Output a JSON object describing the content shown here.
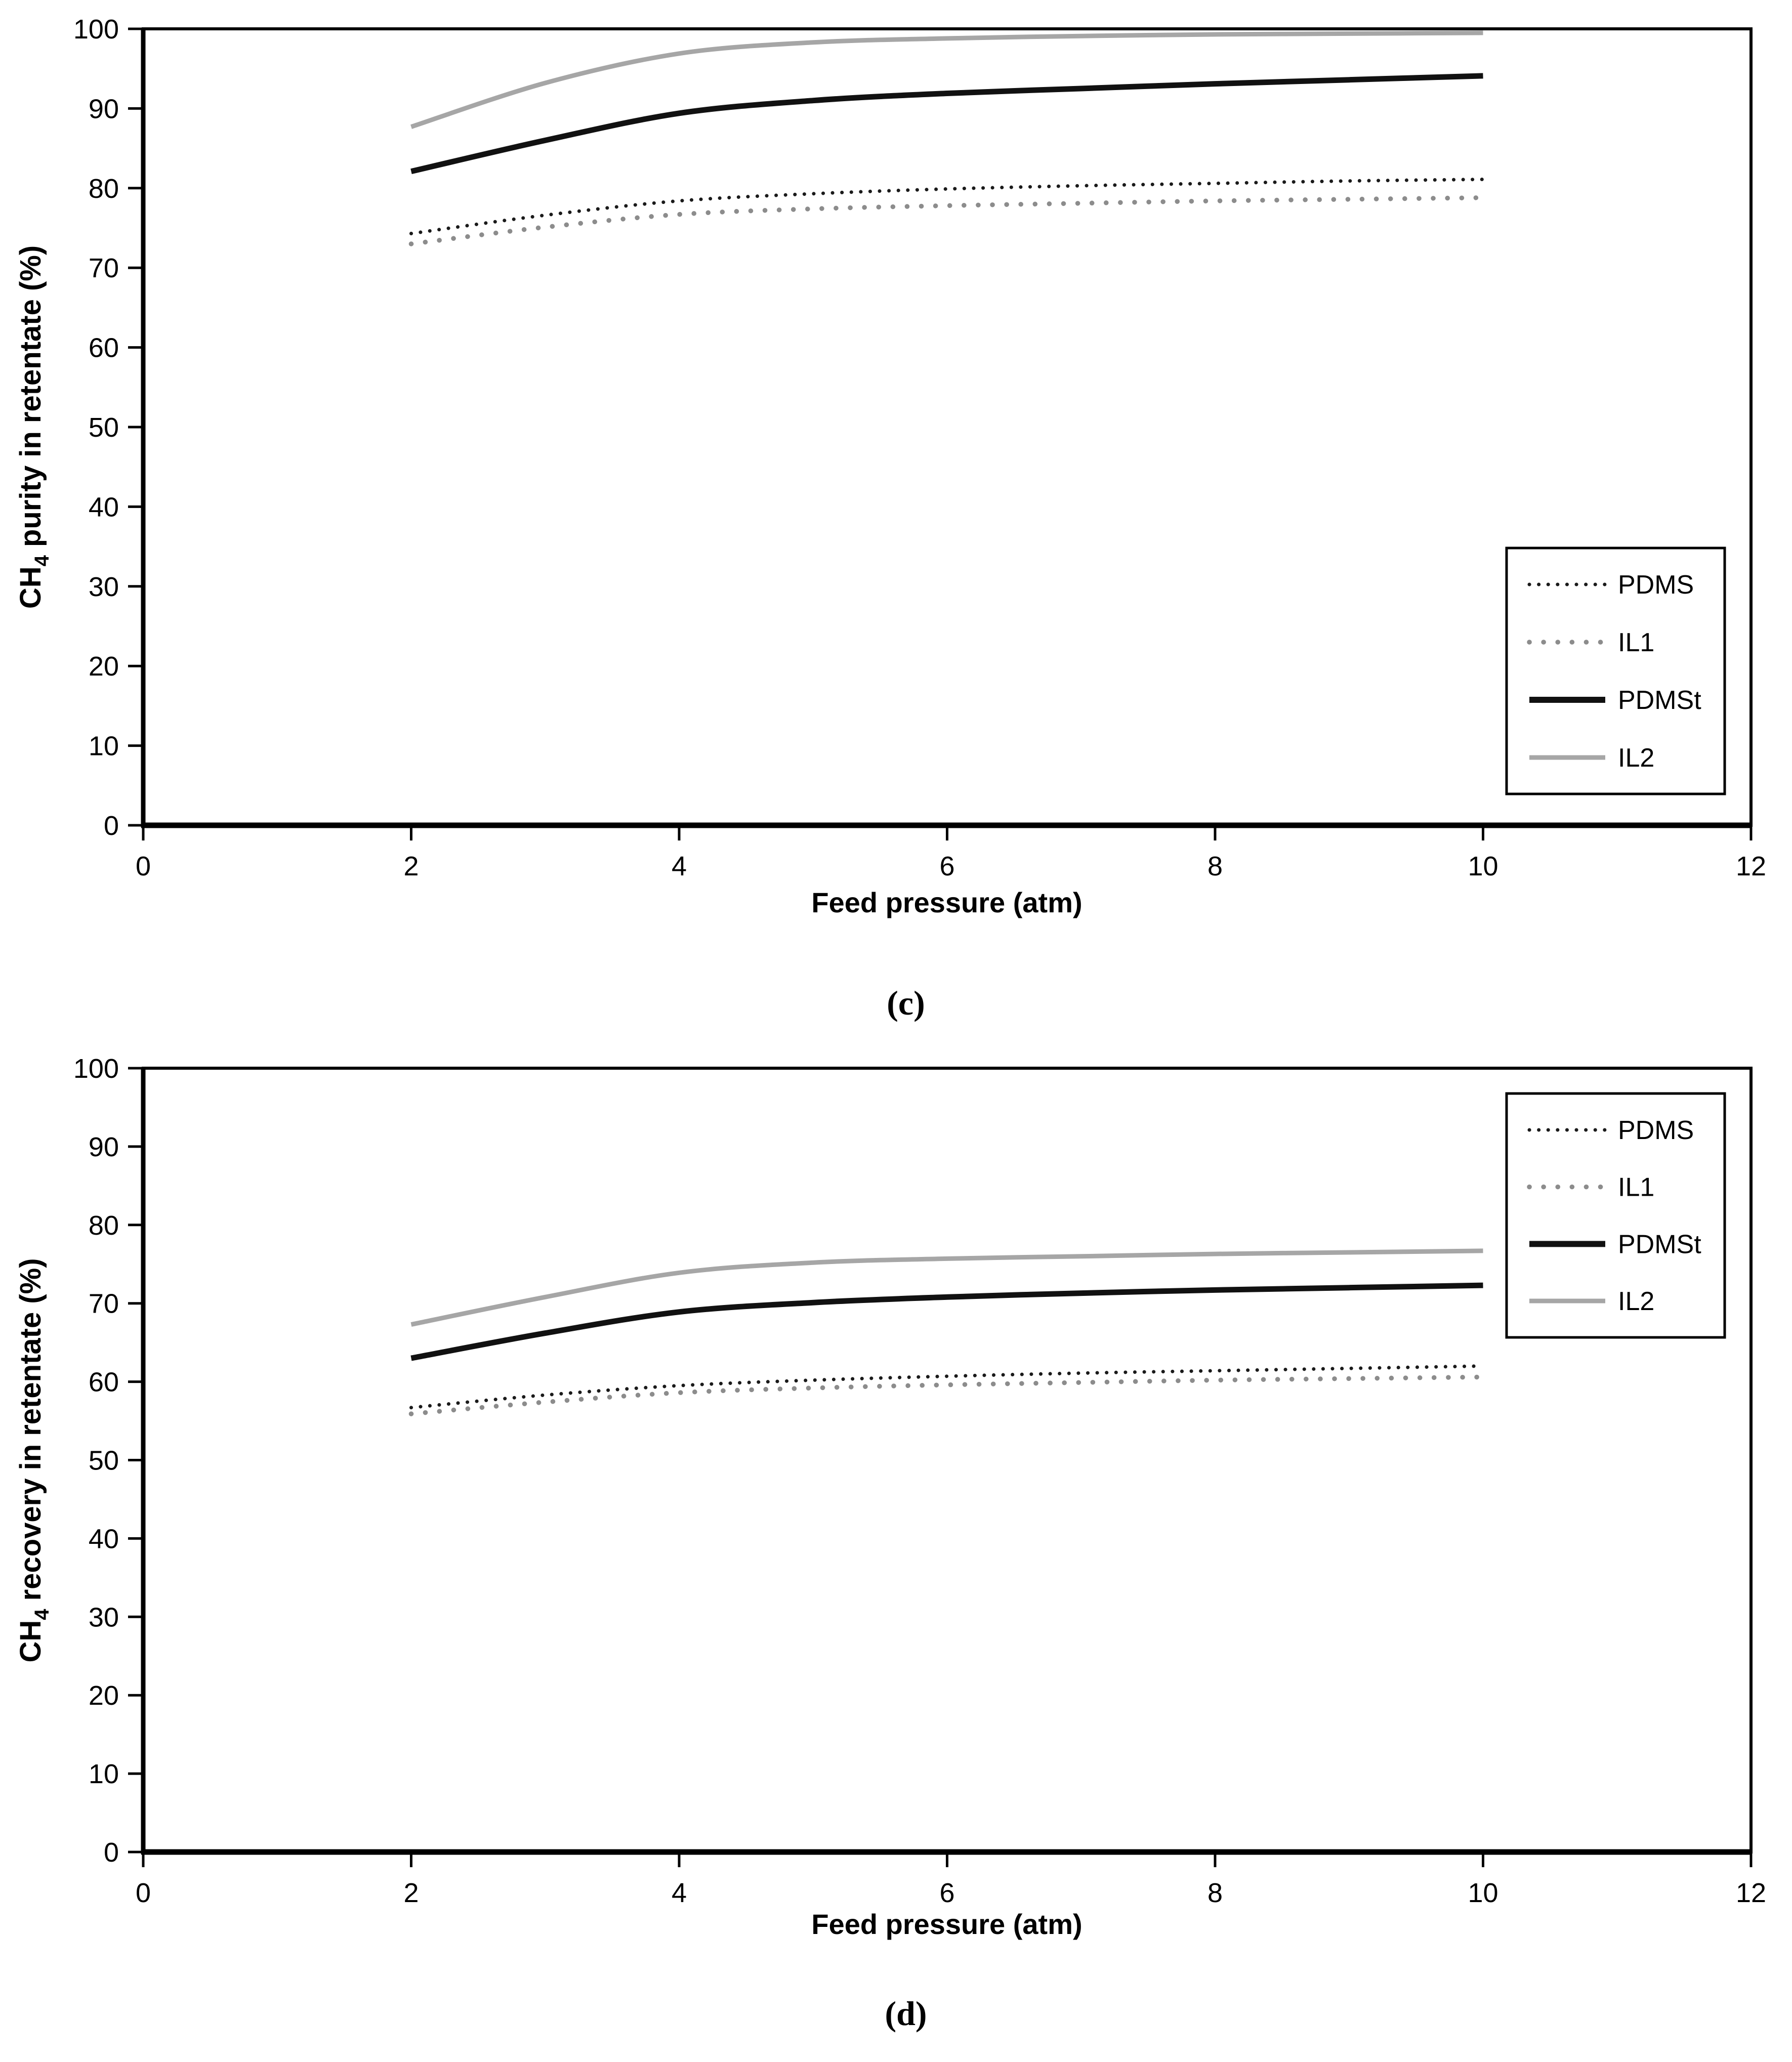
{
  "page": {
    "background": "#ffffff",
    "text_color": "#000000"
  },
  "chart_data": [
    {
      "id": "c",
      "type": "line",
      "caption": "(c)",
      "xlabel": "Feed pressure (atm)",
      "ylabel": {
        "pre": "CH",
        "sub": "4",
        "post": " purity in retentate (%)"
      },
      "xlim": [
        0,
        12
      ],
      "ylim": [
        0,
        100
      ],
      "x_ticks": [
        0,
        2,
        4,
        6,
        8,
        10,
        12
      ],
      "y_ticks": [
        0,
        10,
        20,
        30,
        40,
        50,
        60,
        70,
        80,
        90,
        100
      ],
      "grid": false,
      "legend_position": "inside-right-lower",
      "x": [
        2,
        3,
        4,
        5,
        6,
        7,
        8,
        9,
        10
      ],
      "series": [
        {
          "name": "PDMS",
          "color": "#1a1a1a",
          "line_style": "dotted-fine",
          "stroke_width": 7,
          "values": [
            74.3,
            76.6,
            78.4,
            79.3,
            79.9,
            80.3,
            80.6,
            80.9,
            81.1
          ]
        },
        {
          "name": "IL1",
          "color": "#8c8c8c",
          "line_style": "dotted-coarse",
          "stroke_width": 9.5,
          "values": [
            73.0,
            75.1,
            76.7,
            77.4,
            77.8,
            78.1,
            78.4,
            78.6,
            78.8
          ]
        },
        {
          "name": "PDMSt",
          "color": "#111111",
          "line_style": "solid",
          "stroke_width": 11,
          "values": [
            82.1,
            86.0,
            89.4,
            91.0,
            91.9,
            92.5,
            93.1,
            93.6,
            94.1
          ]
        },
        {
          "name": "IL2",
          "color": "#a6a6a6",
          "line_style": "solid",
          "stroke_width": 9,
          "values": [
            87.7,
            93.2,
            96.9,
            98.3,
            98.8,
            99.1,
            99.3,
            99.4,
            99.5
          ]
        }
      ]
    },
    {
      "id": "d",
      "type": "line",
      "caption": "(d)",
      "xlabel": "Feed pressure (atm)",
      "ylabel": {
        "pre": "CH",
        "sub": "4",
        "post": " recovery in retentate (%)"
      },
      "xlim": [
        0,
        12
      ],
      "ylim": [
        0,
        100
      ],
      "x_ticks": [
        0,
        2,
        4,
        6,
        8,
        10,
        12
      ],
      "y_ticks": [
        0,
        10,
        20,
        30,
        40,
        50,
        60,
        70,
        80,
        90,
        100
      ],
      "grid": false,
      "legend_position": "inside-right-upper",
      "x": [
        2,
        3,
        4,
        5,
        6,
        7,
        8,
        9,
        10
      ],
      "series": [
        {
          "name": "PDMS",
          "color": "#1a1a1a",
          "line_style": "dotted-fine",
          "stroke_width": 7,
          "values": [
            56.7,
            58.3,
            59.5,
            60.2,
            60.7,
            61.1,
            61.4,
            61.7,
            62.0
          ]
        },
        {
          "name": "IL1",
          "color": "#8c8c8c",
          "line_style": "dotted-coarse",
          "stroke_width": 9.5,
          "values": [
            55.9,
            57.4,
            58.6,
            59.2,
            59.6,
            59.9,
            60.2,
            60.4,
            60.6
          ]
        },
        {
          "name": "PDMSt",
          "color": "#111111",
          "line_style": "solid",
          "stroke_width": 11,
          "values": [
            63.0,
            66.2,
            68.9,
            70.1,
            70.8,
            71.3,
            71.7,
            72.0,
            72.3
          ]
        },
        {
          "name": "IL2",
          "color": "#a6a6a6",
          "line_style": "solid",
          "stroke_width": 9,
          "values": [
            67.3,
            70.8,
            73.9,
            75.2,
            75.7,
            76.0,
            76.3,
            76.5,
            76.7
          ]
        }
      ]
    }
  ]
}
